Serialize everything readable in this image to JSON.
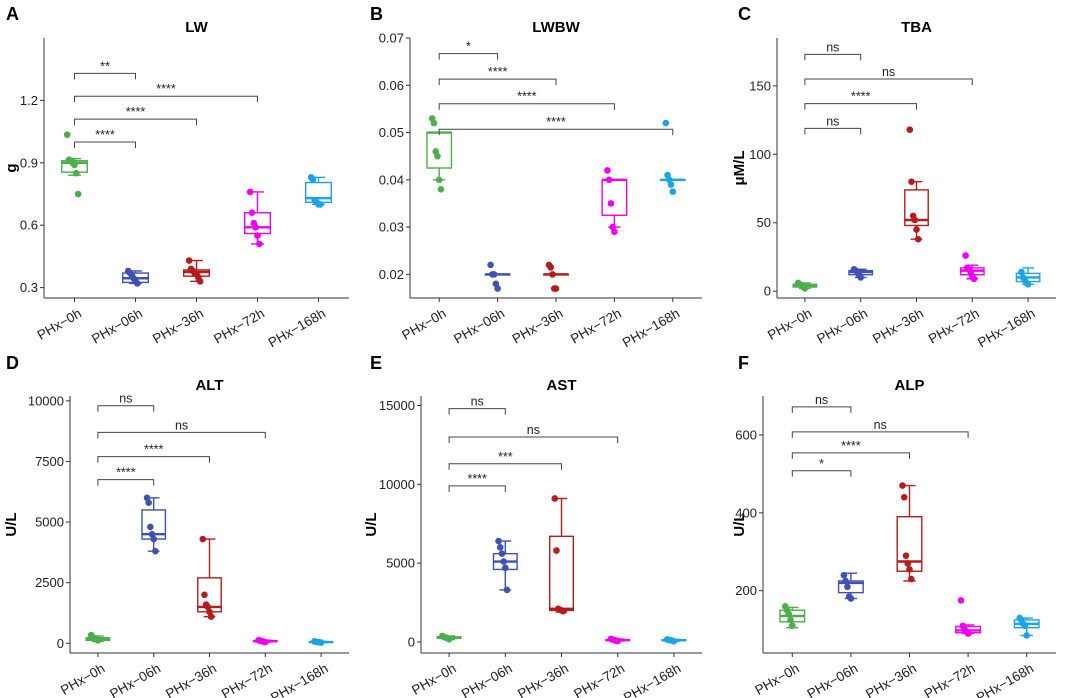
{
  "colors": {
    "PHx-0h": "#4cae4c",
    "PHx-06h": "#3f51b5",
    "PHx-36h": "#b71c1c",
    "PHx-72h": "#ee00ee",
    "PHx-168h": "#1ba3e8"
  },
  "chart_data": [
    {
      "type": "box",
      "panel": "A",
      "title": "LW",
      "ylabel": "g",
      "ylim": [
        0.25,
        1.5
      ],
      "yticks": [
        0.3,
        0.6,
        0.9,
        1.2
      ],
      "ytick_labels": [
        "0.3",
        "0.6",
        "0.9",
        "1.2"
      ],
      "categories": [
        "PHx−0h",
        "PHx−06h",
        "PHx−36h",
        "PHx−72h",
        "PHx−168h"
      ],
      "boxes": [
        {
          "low": 0.84,
          "q1": 0.855,
          "med": 0.9,
          "q3": 0.91,
          "high": 0.92
        },
        {
          "low": 0.32,
          "q1": 0.325,
          "med": 0.345,
          "q3": 0.37,
          "high": 0.38
        },
        {
          "low": 0.33,
          "q1": 0.355,
          "med": 0.375,
          "q3": 0.385,
          "high": 0.43
        },
        {
          "low": 0.51,
          "q1": 0.56,
          "med": 0.59,
          "q3": 0.66,
          "high": 0.76
        },
        {
          "low": 0.7,
          "q1": 0.71,
          "med": 0.73,
          "q3": 0.805,
          "high": 0.83
        }
      ],
      "points": [
        [
          1.035,
          0.915,
          0.91,
          0.9,
          0.89,
          0.85,
          0.75
        ],
        [
          0.38,
          0.37,
          0.36,
          0.345,
          0.33,
          0.32
        ],
        [
          0.43,
          0.39,
          0.38,
          0.37,
          0.365,
          0.35,
          0.33
        ],
        [
          0.76,
          0.66,
          0.61,
          0.59,
          0.55,
          0.51
        ],
        [
          0.83,
          0.82,
          0.72,
          0.71,
          0.7,
          0.7
        ]
      ],
      "comparisons": [
        {
          "group": 1,
          "y": 1.33,
          "label": "**"
        },
        {
          "group": 3,
          "y": 1.22,
          "label": "****"
        },
        {
          "group": 2,
          "y": 1.11,
          "label": "****"
        },
        {
          "group": 1,
          "y": 1.0,
          "label": "****"
        }
      ]
    },
    {
      "type": "box",
      "panel": "B",
      "title": "LWBW",
      "ylabel": "",
      "ylim": [
        0.015,
        0.07
      ],
      "yticks": [
        0.02,
        0.03,
        0.04,
        0.05,
        0.06,
        0.07
      ],
      "ytick_labels": [
        "0.02",
        "0.03",
        "0.04",
        "0.05",
        "0.06",
        "0.07"
      ],
      "categories": [
        "PHx−0h",
        "PHx−06h",
        "PHx−36h",
        "PHx−72h",
        "PHx−168h"
      ],
      "boxes": [
        {
          "low": 0.04,
          "q1": 0.0425,
          "med": 0.05,
          "q3": 0.05,
          "high": 0.05
        },
        {
          "low": 0.02,
          "q1": 0.02,
          "med": 0.02,
          "q3": 0.02,
          "high": 0.02
        },
        {
          "low": 0.02,
          "q1": 0.02,
          "med": 0.02,
          "q3": 0.02,
          "high": 0.02
        },
        {
          "low": 0.03,
          "q1": 0.0325,
          "med": 0.04,
          "q3": 0.04,
          "high": 0.04
        },
        {
          "low": 0.04,
          "q1": 0.04,
          "med": 0.04,
          "q3": 0.04,
          "high": 0.04
        }
      ],
      "points": [
        [
          0.053,
          0.052,
          0.046,
          0.045,
          0.04,
          0.038
        ],
        [
          0.022,
          0.02,
          0.02,
          0.018,
          0.017
        ],
        [
          0.022,
          0.0215,
          0.02,
          0.017,
          0.017
        ],
        [
          0.042,
          0.04,
          0.035,
          0.03,
          0.029
        ],
        [
          0.052,
          0.041,
          0.04,
          0.039,
          0.0375
        ]
      ],
      "comparisons": [
        {
          "group": 1,
          "y": 0.0667,
          "label": "*"
        },
        {
          "group": 2,
          "y": 0.0613,
          "label": "****"
        },
        {
          "group": 3,
          "y": 0.0561,
          "label": "****"
        },
        {
          "group": 4,
          "y": 0.0507,
          "label": "****"
        }
      ]
    },
    {
      "type": "box",
      "panel": "C",
      "title": "TBA",
      "ylabel": "μM/L",
      "ylim": [
        -5,
        185
      ],
      "yticks": [
        0,
        50,
        100,
        150
      ],
      "ytick_labels": [
        "0",
        "50",
        "100",
        "150"
      ],
      "categories": [
        "PHx−0h",
        "PHx−06h",
        "PHx−36h",
        "PHx−72h",
        "PHx−168h"
      ],
      "boxes": [
        {
          "low": 2,
          "q1": 3,
          "med": 4,
          "q3": 5,
          "high": 6
        },
        {
          "low": 10,
          "q1": 12,
          "med": 14,
          "q3": 15,
          "high": 16
        },
        {
          "low": 38,
          "q1": 48,
          "med": 52,
          "q3": 74,
          "high": 80
        },
        {
          "low": 9,
          "q1": 12,
          "med": 15,
          "q3": 17,
          "high": 19
        },
        {
          "low": 5,
          "q1": 7,
          "med": 10,
          "q3": 13,
          "high": 17
        }
      ],
      "points": [
        [
          6,
          5,
          4,
          3,
          2
        ],
        [
          16,
          15,
          14,
          12,
          10
        ],
        [
          118,
          80,
          55,
          52,
          45,
          38
        ],
        [
          26,
          17,
          16,
          14,
          11,
          9
        ],
        [
          14,
          10,
          8,
          6,
          5
        ]
      ],
      "comparisons": [
        {
          "group": 1,
          "y": 173,
          "label": "ns"
        },
        {
          "group": 3,
          "y": 155,
          "label": "ns"
        },
        {
          "group": 2,
          "y": 137,
          "label": "****"
        },
        {
          "group": 1,
          "y": 119,
          "label": "ns"
        }
      ]
    },
    {
      "type": "box",
      "panel": "D",
      "title": "ALT",
      "ylabel": "U/L",
      "ylim": [
        -400,
        10200
      ],
      "yticks": [
        0,
        2500,
        5000,
        7500,
        10000
      ],
      "ytick_labels": [
        "0",
        "2500",
        "5000",
        "7500",
        "10000"
      ],
      "categories": [
        "PHx−0h",
        "PHx−06h",
        "PHx−36h",
        "PHx−72h",
        "PHx−168h"
      ],
      "boxes": [
        {
          "low": 80,
          "q1": 120,
          "med": 180,
          "q3": 230,
          "high": 300
        },
        {
          "low": 3800,
          "q1": 4300,
          "med": 4500,
          "q3": 5500,
          "high": 6000
        },
        {
          "low": 1100,
          "q1": 1300,
          "med": 1500,
          "q3": 2700,
          "high": 4300
        },
        {
          "low": 50,
          "q1": 70,
          "med": 90,
          "q3": 110,
          "high": 130
        },
        {
          "low": 30,
          "q1": 40,
          "med": 50,
          "q3": 60,
          "high": 80
        }
      ],
      "points": [
        [
          340,
          230,
          200,
          160,
          120
        ],
        [
          6000,
          5800,
          4800,
          4500,
          4300,
          3800
        ],
        [
          4300,
          2000,
          1600,
          1500,
          1300,
          1100
        ],
        [
          130,
          110,
          90,
          70,
          50
        ],
        [
          80,
          60,
          50,
          40,
          30
        ]
      ],
      "comparisons": [
        {
          "group": 1,
          "y": 9800,
          "label": "ns"
        },
        {
          "group": 3,
          "y": 8700,
          "label": "ns"
        },
        {
          "group": 2,
          "y": 7700,
          "label": "****"
        },
        {
          "group": 1,
          "y": 6750,
          "label": "****"
        }
      ]
    },
    {
      "type": "box",
      "panel": "E",
      "title": "AST",
      "ylabel": "U/L",
      "ylim": [
        -700,
        15600
      ],
      "yticks": [
        0,
        5000,
        10000,
        15000
      ],
      "ytick_labels": [
        "0",
        "5000",
        "10000",
        "15000"
      ],
      "categories": [
        "PHx−0h",
        "PHx−06h",
        "PHx−36h",
        "PHx−72h",
        "PHx−168h"
      ],
      "boxes": [
        {
          "low": 150,
          "q1": 230,
          "med": 280,
          "q3": 330,
          "high": 380
        },
        {
          "low": 3300,
          "q1": 4600,
          "med": 5100,
          "q3": 5600,
          "high": 6400
        },
        {
          "low": 1900,
          "q1": 2000,
          "med": 2100,
          "q3": 6700,
          "high": 9100
        },
        {
          "low": 60,
          "q1": 90,
          "med": 120,
          "q3": 150,
          "high": 190
        },
        {
          "low": 50,
          "q1": 80,
          "med": 110,
          "q3": 130,
          "high": 160
        }
      ],
      "points": [
        [
          380,
          320,
          280,
          240,
          170
        ],
        [
          6400,
          6000,
          5600,
          5100,
          4700,
          3300
        ],
        [
          9100,
          5800,
          2100,
          2050,
          2000,
          1950
        ],
        [
          190,
          150,
          120,
          90,
          60
        ],
        [
          160,
          130,
          110,
          80,
          50
        ]
      ],
      "comparisons": [
        {
          "group": 1,
          "y": 14800,
          "label": "ns"
        },
        {
          "group": 3,
          "y": 13000,
          "label": "ns"
        },
        {
          "group": 2,
          "y": 11300,
          "label": "***"
        },
        {
          "group": 1,
          "y": 9900,
          "label": "****"
        }
      ]
    },
    {
      "type": "box",
      "panel": "F",
      "title": "ALP",
      "ylabel": "U/L",
      "ylim": [
        40,
        700
      ],
      "yticks": [
        200,
        400,
        600
      ],
      "ytick_labels": [
        "200",
        "400",
        "600"
      ],
      "categories": [
        "PHx−0h",
        "PHx−06h",
        "PHx−36h",
        "PHx−72h",
        "PHx−168h"
      ],
      "boxes": [
        {
          "low": 105,
          "q1": 120,
          "med": 135,
          "q3": 150,
          "high": 157
        },
        {
          "low": 180,
          "q1": 195,
          "med": 220,
          "q3": 225,
          "high": 245
        },
        {
          "low": 225,
          "q1": 250,
          "med": 275,
          "q3": 390,
          "high": 470
        },
        {
          "low": 90,
          "q1": 92,
          "med": 98,
          "q3": 108,
          "high": 112
        },
        {
          "low": 85,
          "q1": 105,
          "med": 115,
          "q3": 125,
          "high": 130
        }
      ],
      "points": [
        [
          160,
          150,
          140,
          125,
          110
        ],
        [
          240,
          225,
          210,
          185,
          180
        ],
        [
          470,
          440,
          290,
          270,
          255,
          230
        ],
        [
          175,
          110,
          100,
          95,
          90
        ],
        [
          130,
          125,
          115,
          110,
          85
        ]
      ],
      "comparisons": [
        {
          "group": 1,
          "y": 672,
          "label": "ns"
        },
        {
          "group": 3,
          "y": 608,
          "label": "ns"
        },
        {
          "group": 2,
          "y": 554,
          "label": "****"
        },
        {
          "group": 1,
          "y": 508,
          "label": "*"
        }
      ]
    }
  ]
}
